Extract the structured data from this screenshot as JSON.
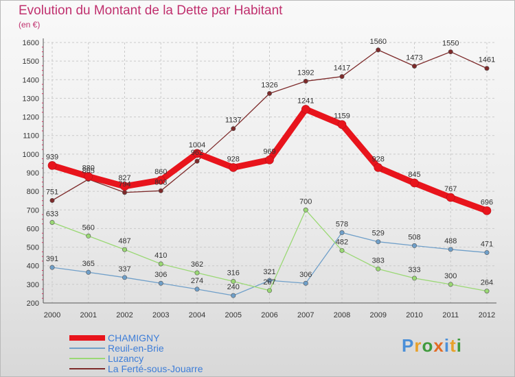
{
  "header": {
    "title": "Evolution du Montant de la Dette par Habitant",
    "subtitle": "(en €)"
  },
  "logo": {
    "text": "Proxiti",
    "letter_colors": [
      "#4a8fd8",
      "#e8a12a",
      "#3f9a3c",
      "#e26b24",
      "#4a8fd8",
      "#e8a12a",
      "#3f9a3c"
    ]
  },
  "chart_data": {
    "type": "line",
    "title": "Evolution du Montant de la Dette par Habitant",
    "ylabel": "(en €)",
    "xlabel": "",
    "x": [
      "2000",
      "2001",
      "2002",
      "2003",
      "2004",
      "2005",
      "2006",
      "2007",
      "2008",
      "2009",
      "2010",
      "2011",
      "2012"
    ],
    "ylim": [
      200,
      1600
    ],
    "yticks": [
      "200",
      "300",
      "400",
      "500",
      "600",
      "700",
      "800",
      "900",
      "1000",
      "1100",
      "1200",
      "1300",
      "1400",
      "1500",
      "1600"
    ],
    "grid": true,
    "legend_position": "bottom-left",
    "series": [
      {
        "name": "CHAMIGNY",
        "color": "#e8141c",
        "values": [
          939,
          880,
          827,
          860,
          1004,
          928,
          969,
          1241,
          1159,
          928,
          845,
          767,
          696
        ]
      },
      {
        "name": "Reuil-en-Brie",
        "color": "#6f9fc9",
        "values": [
          391,
          365,
          337,
          306,
          274,
          240,
          321,
          306,
          578,
          529,
          508,
          488,
          471
        ]
      },
      {
        "name": "Luzancy",
        "color": "#9ad874",
        "values": [
          633,
          560,
          487,
          410,
          362,
          316,
          267,
          700,
          482,
          383,
          333,
          300,
          264
        ]
      },
      {
        "name": "La Ferté-sous-Jouarre",
        "color": "#7d2a2a",
        "values": [
          751,
          865,
          794,
          803,
          962,
          1137,
          1326,
          1392,
          1417,
          1560,
          1473,
          1550,
          1461
        ]
      }
    ]
  }
}
